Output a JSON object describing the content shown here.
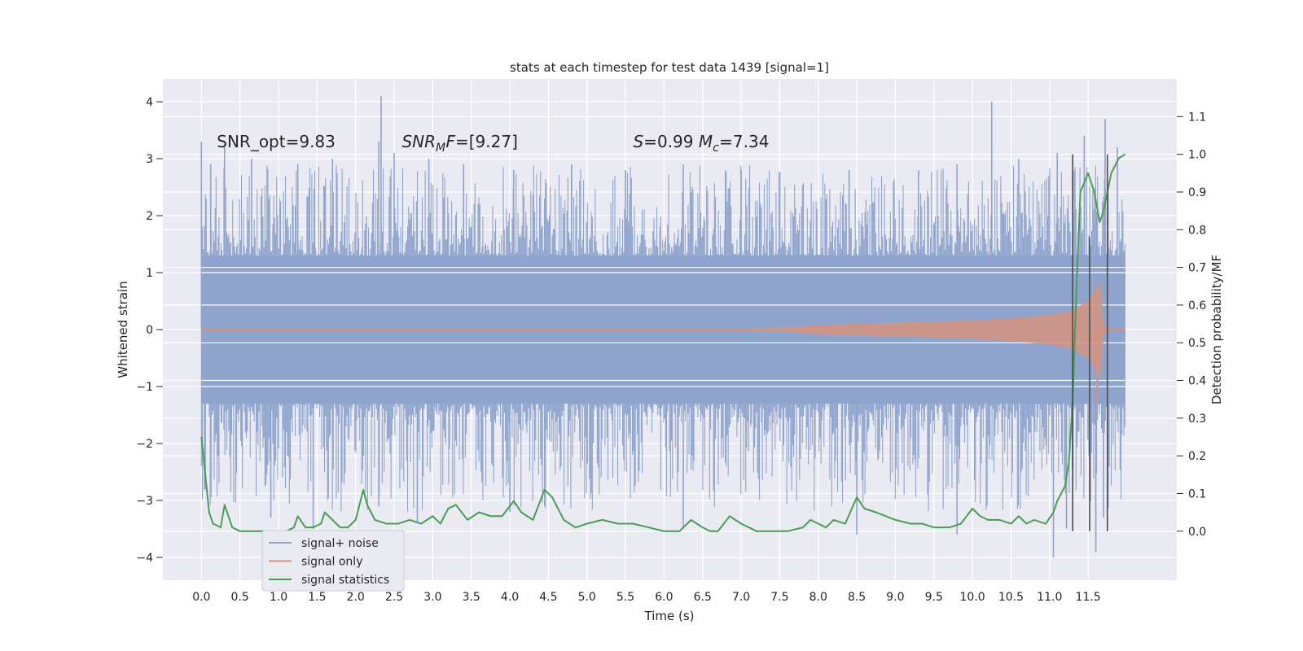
{
  "chart_data": {
    "type": "line",
    "title": "stats at each timestep for test data 1439 [signal=1]",
    "xlabel": "Time (s)",
    "ylabel": "Whitened strain",
    "ylabel_right": "Detection probability/MF",
    "xlim": [
      -0.5,
      12.65
    ],
    "ylim": [
      -4.4,
      4.4
    ],
    "ylim_right": [
      -0.13,
      1.2
    ],
    "x_ticks": [
      0.0,
      0.5,
      1.0,
      1.5,
      2.0,
      2.5,
      3.0,
      3.5,
      4.0,
      4.5,
      5.0,
      5.5,
      6.0,
      6.5,
      7.0,
      7.5,
      8.0,
      8.5,
      9.0,
      9.5,
      10.0,
      10.5,
      11.0,
      11.5
    ],
    "x_tick_labels": [
      "0.0",
      "0.5",
      "1.0",
      "1.5",
      "2.0",
      "2.5",
      "3.0",
      "3.5",
      "4.0",
      "4.5",
      "5.0",
      "5.5",
      "6.0",
      "6.5",
      "7.0",
      "7.5",
      "8.0",
      "8.5",
      "9.0",
      "9.5",
      "10.0",
      "10.5",
      "11.0",
      "11.5"
    ],
    "y_ticks": [
      -4,
      -3,
      -2,
      -1,
      0,
      1,
      2,
      3,
      4
    ],
    "y_tick_labels": [
      "−4",
      "−3",
      "−2",
      "−1",
      "0",
      "1",
      "2",
      "3",
      "4"
    ],
    "y_right_ticks": [
      0.0,
      0.1,
      0.2,
      0.3,
      0.4,
      0.5,
      0.6,
      0.7,
      0.8,
      0.9,
      1.0,
      1.1
    ],
    "y_right_tick_labels": [
      "0.0",
      "0.1",
      "0.2",
      "0.3",
      "0.4",
      "0.5",
      "0.6",
      "0.7",
      "0.8",
      "0.9",
      "1.0",
      "1.1"
    ],
    "grid": true,
    "legend_position": "bottom-left",
    "annotations": [
      {
        "parts": [
          {
            "text": "SNR_opt=9.83",
            "italic": false
          }
        ],
        "x": 0.2,
        "y": 3.3
      },
      {
        "parts": [
          {
            "text": "SNR",
            "italic": true
          },
          {
            "text": "M",
            "italic": true,
            "sub": true
          },
          {
            "text": "F",
            "italic": true
          },
          {
            "text": "=[9.27]",
            "italic": false
          }
        ],
        "x": 2.6,
        "y": 3.3
      },
      {
        "parts": [
          {
            "text": "S",
            "italic": true
          },
          {
            "text": "=0.99   ",
            "italic": false
          },
          {
            "text": "M",
            "italic": true
          },
          {
            "text": "c",
            "italic": true,
            "sub": true
          },
          {
            "text": "=7.34",
            "italic": false
          }
        ],
        "x": 5.6,
        "y": 3.3
      }
    ],
    "series": [
      {
        "name": "signal+ noise",
        "color": "#8fa4cc",
        "axis": "left",
        "style": "dense-noise",
        "x_range": [
          0.0,
          11.98
        ],
        "core_amplitude": 1.3,
        "typical_peak": 2.0,
        "peaks": [
          {
            "x": 0.0,
            "y": 3.3
          },
          {
            "x": 0.12,
            "y": 2.9
          },
          {
            "x": 0.3,
            "y": 3.2
          },
          {
            "x": 0.65,
            "y": 3.0
          },
          {
            "x": 1.25,
            "y": 2.9
          },
          {
            "x": 1.7,
            "y": 3.0
          },
          {
            "x": 2.3,
            "y": 3.3
          },
          {
            "x": 2.33,
            "y": 4.1
          },
          {
            "x": 2.5,
            "y": 3.1
          },
          {
            "x": 2.95,
            "y": 3.0
          },
          {
            "x": 3.4,
            "y": 2.9
          },
          {
            "x": 4.05,
            "y": 2.8
          },
          {
            "x": 4.8,
            "y": 2.9
          },
          {
            "x": 5.5,
            "y": 2.8
          },
          {
            "x": 6.25,
            "y": 2.9
          },
          {
            "x": 7.0,
            "y": 2.8
          },
          {
            "x": 8.4,
            "y": 2.8
          },
          {
            "x": 9.3,
            "y": 2.8
          },
          {
            "x": 9.8,
            "y": 2.9
          },
          {
            "x": 10.25,
            "y": 4.0
          },
          {
            "x": 10.6,
            "y": 3.0
          },
          {
            "x": 11.1,
            "y": 3.1
          },
          {
            "x": 11.45,
            "y": 3.4
          },
          {
            "x": 11.72,
            "y": 3.7
          },
          {
            "x": 11.88,
            "y": 3.2
          }
        ],
        "troughs": [
          {
            "x": 0.05,
            "y": -2.8
          },
          {
            "x": 0.9,
            "y": -3.3
          },
          {
            "x": 1.45,
            "y": -3.5
          },
          {
            "x": 2.3,
            "y": -3.1
          },
          {
            "x": 2.8,
            "y": -3.4
          },
          {
            "x": 4.0,
            "y": -3.2
          },
          {
            "x": 6.25,
            "y": -3.5
          },
          {
            "x": 8.5,
            "y": -3.6
          },
          {
            "x": 9.8,
            "y": -3.6
          },
          {
            "x": 11.05,
            "y": -4.0
          },
          {
            "x": 11.22,
            "y": -3.5
          },
          {
            "x": 11.6,
            "y": -3.9
          },
          {
            "x": 11.7,
            "y": -3.3
          }
        ]
      },
      {
        "name": "signal only",
        "color": "#d5937e",
        "axis": "left",
        "style": "chirp",
        "x_range": [
          0.0,
          11.98
        ],
        "envelope": [
          {
            "x": 0.0,
            "y": 0.02
          },
          {
            "x": 7.0,
            "y": 0.02
          },
          {
            "x": 7.6,
            "y": 0.04
          },
          {
            "x": 8.0,
            "y": 0.08
          },
          {
            "x": 8.5,
            "y": 0.1
          },
          {
            "x": 9.0,
            "y": 0.12
          },
          {
            "x": 9.5,
            "y": 0.14
          },
          {
            "x": 10.0,
            "y": 0.16
          },
          {
            "x": 10.5,
            "y": 0.2
          },
          {
            "x": 11.0,
            "y": 0.26
          },
          {
            "x": 11.3,
            "y": 0.34
          },
          {
            "x": 11.5,
            "y": 0.5
          },
          {
            "x": 11.6,
            "y": 0.7
          },
          {
            "x": 11.65,
            "y": 0.85
          },
          {
            "x": 11.68,
            "y": 0.6
          },
          {
            "x": 11.7,
            "y": 0.1
          },
          {
            "x": 11.75,
            "y": 0.02
          },
          {
            "x": 11.98,
            "y": 0.02
          }
        ],
        "trough_floor": [
          {
            "x": 11.62,
            "y": -1.3
          }
        ]
      },
      {
        "name": "signal statistics",
        "color": "#4a9d55",
        "axis": "right",
        "style": "line",
        "x": [
          0.0,
          0.1,
          0.15,
          0.25,
          0.3,
          0.4,
          0.5,
          0.6,
          0.75,
          0.9,
          1.0,
          1.1,
          1.2,
          1.25,
          1.35,
          1.45,
          1.55,
          1.6,
          1.7,
          1.8,
          1.9,
          2.0,
          2.05,
          2.1,
          2.15,
          2.25,
          2.4,
          2.55,
          2.7,
          2.85,
          3.0,
          3.1,
          3.2,
          3.3,
          3.45,
          3.6,
          3.75,
          3.9,
          4.05,
          4.15,
          4.3,
          4.45,
          4.55,
          4.7,
          4.85,
          5.0,
          5.2,
          5.4,
          5.6,
          5.8,
          6.0,
          6.2,
          6.35,
          6.5,
          6.6,
          6.7,
          6.85,
          7.0,
          7.1,
          7.2,
          7.4,
          7.6,
          7.8,
          7.9,
          8.0,
          8.1,
          8.2,
          8.35,
          8.5,
          8.6,
          8.75,
          9.0,
          9.2,
          9.35,
          9.5,
          9.7,
          9.85,
          10.0,
          10.05,
          10.1,
          10.2,
          10.35,
          10.5,
          10.6,
          10.7,
          10.8,
          10.95,
          11.05,
          11.1,
          11.2,
          11.25,
          11.3,
          11.35,
          11.4,
          11.5,
          11.58,
          11.65,
          11.7,
          11.8,
          11.9,
          11.98
        ],
        "y": [
          0.25,
          0.05,
          0.02,
          0.01,
          0.07,
          0.01,
          0.0,
          0.0,
          0.0,
          0.0,
          0.0,
          0.0,
          0.01,
          0.04,
          0.01,
          0.01,
          0.02,
          0.05,
          0.03,
          0.01,
          0.01,
          0.03,
          0.07,
          0.11,
          0.07,
          0.03,
          0.02,
          0.02,
          0.03,
          0.02,
          0.04,
          0.02,
          0.06,
          0.07,
          0.03,
          0.05,
          0.04,
          0.04,
          0.08,
          0.05,
          0.03,
          0.11,
          0.09,
          0.03,
          0.01,
          0.02,
          0.03,
          0.02,
          0.02,
          0.01,
          0.0,
          0.0,
          0.03,
          0.01,
          0.0,
          0.0,
          0.04,
          0.02,
          0.01,
          0.0,
          0.0,
          0.0,
          0.01,
          0.03,
          0.02,
          0.01,
          0.03,
          0.02,
          0.09,
          0.06,
          0.05,
          0.03,
          0.02,
          0.02,
          0.01,
          0.01,
          0.02,
          0.06,
          0.05,
          0.04,
          0.03,
          0.03,
          0.02,
          0.04,
          0.02,
          0.03,
          0.02,
          0.05,
          0.08,
          0.12,
          0.18,
          0.35,
          0.65,
          0.9,
          0.95,
          0.9,
          0.82,
          0.85,
          0.95,
          0.99,
          1.0
        ]
      }
    ],
    "vertical_lines": [
      {
        "x": 11.3,
        "y_range": [
          0.0,
          1.0
        ]
      },
      {
        "x": 11.52,
        "y_range": [
          0.0,
          0.78
        ]
      },
      {
        "x": 11.75,
        "y_range": [
          0.0,
          1.0
        ]
      }
    ]
  }
}
